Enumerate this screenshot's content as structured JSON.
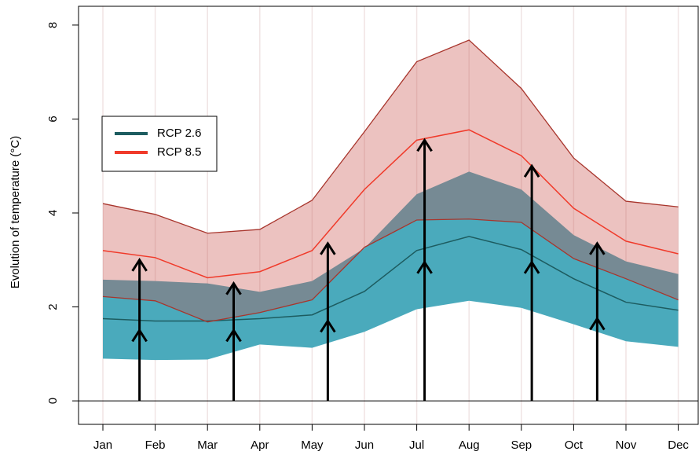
{
  "chart_data": {
    "type": "band-line",
    "y_label": "Evolution of temperature (°C)",
    "categories": [
      "Jan",
      "Feb",
      "Mar",
      "Apr",
      "May",
      "Jun",
      "Jul",
      "Aug",
      "Sep",
      "Oct",
      "Nov",
      "Dec"
    ],
    "ylim": [
      -0.5,
      8.4
    ],
    "yticks": [
      0,
      2,
      4,
      6,
      8
    ],
    "grid": true,
    "legend": "upper-left",
    "series": [
      {
        "name": "RCP 2.6",
        "color": "#1d5c60",
        "band_color": "#4aaabc",
        "edge_color": "#2c7f8c",
        "values": [
          1.75,
          1.7,
          1.7,
          1.75,
          1.83,
          2.33,
          3.2,
          3.5,
          3.22,
          2.6,
          2.1,
          1.93
        ],
        "low": [
          0.9,
          0.87,
          0.88,
          1.2,
          1.13,
          1.47,
          1.95,
          2.13,
          1.98,
          1.63,
          1.27,
          1.15
        ],
        "high": [
          2.58,
          2.55,
          2.5,
          2.32,
          2.55,
          3.25,
          4.4,
          4.88,
          4.5,
          3.53,
          2.97,
          2.7
        ]
      },
      {
        "name": "RCP 8.5",
        "color": "#f03a2a",
        "band_color": "#c9514a",
        "edge_color": "#a8352c",
        "values": [
          3.2,
          3.05,
          2.62,
          2.75,
          3.2,
          4.5,
          5.55,
          5.77,
          5.22,
          4.1,
          3.4,
          3.13
        ],
        "low": [
          2.22,
          2.13,
          1.68,
          1.88,
          2.15,
          3.27,
          3.85,
          3.87,
          3.8,
          3.03,
          2.6,
          2.15
        ],
        "high": [
          4.2,
          3.97,
          3.57,
          3.65,
          4.27,
          5.73,
          7.22,
          7.68,
          6.65,
          5.17,
          4.25,
          4.13
        ]
      }
    ],
    "arrows": {
      "color": "#000000",
      "x": [
        0.7,
        2.5,
        4.3,
        6.15,
        8.2,
        9.45
      ],
      "top": [
        3.0,
        2.5,
        3.35,
        5.55,
        5.0,
        3.35
      ],
      "mid": [
        1.5,
        1.5,
        1.7,
        2.95,
        2.95,
        1.75
      ]
    }
  }
}
